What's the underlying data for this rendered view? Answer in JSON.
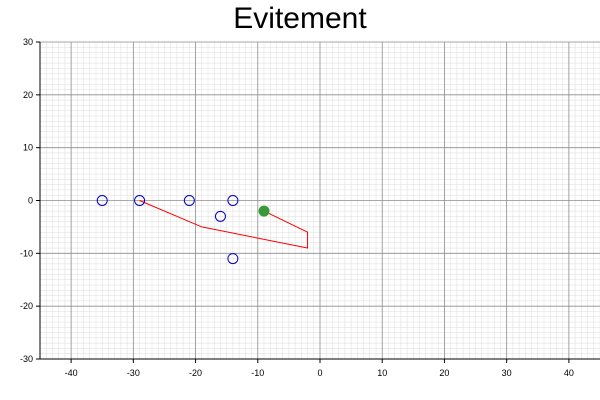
{
  "chart_data": {
    "type": "scatter",
    "title": "Evitement",
    "xlim": [
      -45,
      45
    ],
    "ylim": [
      -30,
      30
    ],
    "x_ticks": [
      -40,
      -30,
      -20,
      -10,
      0,
      10,
      20,
      30,
      40
    ],
    "y_ticks": [
      -30,
      -20,
      -10,
      0,
      10,
      20,
      30
    ],
    "grid": true,
    "obstacles": {
      "color": "#0000cc",
      "points": [
        {
          "x": -35,
          "y": 0
        },
        {
          "x": -29,
          "y": 0
        },
        {
          "x": -21,
          "y": 0
        },
        {
          "x": -14,
          "y": 0
        },
        {
          "x": -16,
          "y": -3
        },
        {
          "x": -14,
          "y": -11
        }
      ]
    },
    "path": {
      "color": "#ff0000",
      "points": [
        {
          "x": -29,
          "y": 0
        },
        {
          "x": -19,
          "y": -5
        },
        {
          "x": -2,
          "y": -9
        },
        {
          "x": -2,
          "y": -6
        },
        {
          "x": -9,
          "y": -2
        }
      ]
    },
    "robot": {
      "color": "#3a9a3a",
      "x": -9,
      "y": -2
    }
  }
}
